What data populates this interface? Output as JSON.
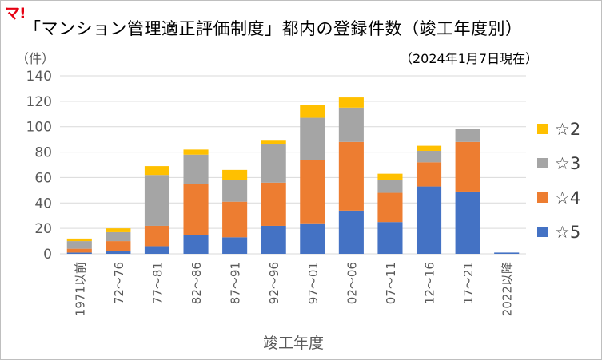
{
  "logo_text": "マ!",
  "chart_data": {
    "type": "bar",
    "stacked": true,
    "title": "「マンション管理適正評価制度」都内の登録件数（竣工年度別）",
    "subtitle": "（2024年1月7日現在）",
    "unit_label": "（件）",
    "xlabel": "竣工年度",
    "ylabel": "",
    "ylim": [
      0,
      140
    ],
    "yticks": [
      0,
      20,
      40,
      60,
      80,
      100,
      120,
      140
    ],
    "grid": true,
    "legend_position": "right",
    "categories": [
      "1971以前",
      "72～76",
      "77～81",
      "82～86",
      "87～91",
      "92～96",
      "97～01",
      "02～06",
      "07～11",
      "12～16",
      "17～21",
      "2022以降"
    ],
    "series": [
      {
        "name": "☆5",
        "color": "#4472c4",
        "values": [
          1,
          2,
          6,
          15,
          13,
          22,
          24,
          34,
          25,
          53,
          49,
          1
        ]
      },
      {
        "name": "☆4",
        "color": "#ed7d31",
        "values": [
          3,
          8,
          16,
          40,
          28,
          34,
          50,
          54,
          23,
          19,
          39,
          0
        ]
      },
      {
        "name": "☆3",
        "color": "#a5a5a5",
        "values": [
          6,
          7,
          40,
          23,
          17,
          30,
          33,
          27,
          10,
          9,
          10,
          0
        ]
      },
      {
        "name": "☆2",
        "color": "#ffc000",
        "values": [
          2,
          3,
          7,
          4,
          8,
          3,
          10,
          8,
          5,
          4,
          0,
          0
        ]
      }
    ]
  }
}
